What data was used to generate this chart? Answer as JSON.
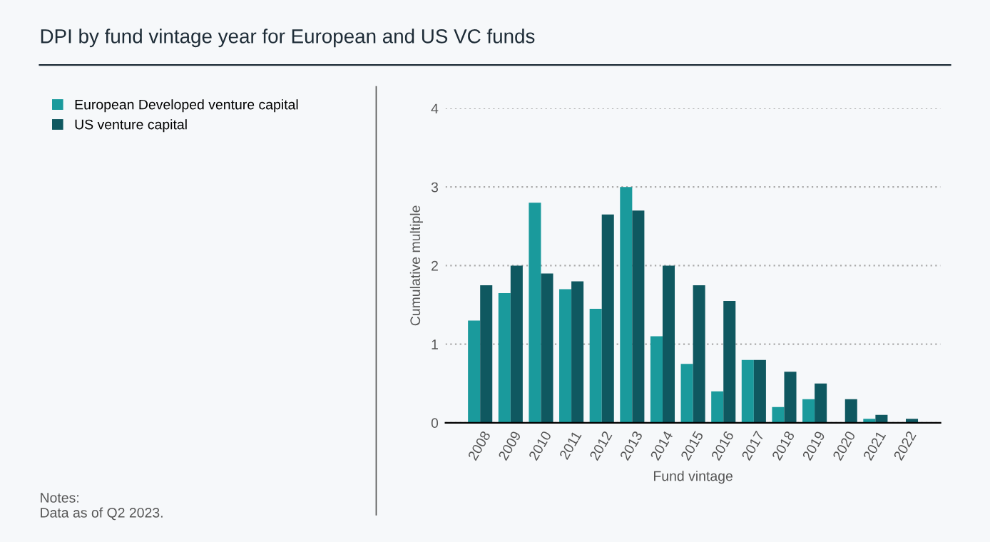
{
  "chart_data": {
    "type": "bar",
    "title": "DPI by fund vintage year for European and US VC funds",
    "xlabel": "Fund vintage",
    "ylabel": "Cumulative multiple",
    "categories": [
      "2008",
      "2009",
      "2010",
      "2011",
      "2012",
      "2013",
      "2014",
      "2015",
      "2016",
      "2017",
      "2018",
      "2019",
      "2020",
      "2021",
      "2022"
    ],
    "series": [
      {
        "name": "European Developed venture capital",
        "color": "#1a9a9c",
        "values": [
          1.3,
          1.65,
          2.8,
          1.7,
          1.45,
          3.0,
          1.1,
          0.75,
          0.4,
          0.8,
          0.2,
          0.3,
          0.0,
          0.05,
          0.0
        ]
      },
      {
        "name": "US venture capital",
        "color": "#0f5860",
        "values": [
          1.75,
          2.0,
          1.9,
          1.8,
          2.65,
          2.7,
          2.0,
          1.75,
          1.55,
          0.8,
          0.65,
          0.5,
          0.3,
          0.1,
          0.05
        ]
      }
    ],
    "ylim": [
      0,
      4
    ],
    "yticks": [
      0,
      1,
      2,
      3,
      4
    ],
    "grid": "y",
    "legend": "left",
    "annotations": [
      "Notes:\nData as of Q2 2023."
    ]
  }
}
